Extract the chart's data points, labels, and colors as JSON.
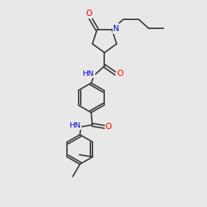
{
  "background_color": "#e8e8e8",
  "bond_color": "#3a3a3a",
  "atom_colors": {
    "O": "#ff0000",
    "N": "#0000cc",
    "C": "#000000",
    "H": "#555555"
  },
  "figsize": [
    3.0,
    3.0
  ],
  "dpi": 100,
  "lw": 1.4,
  "fontsize": 7.5
}
